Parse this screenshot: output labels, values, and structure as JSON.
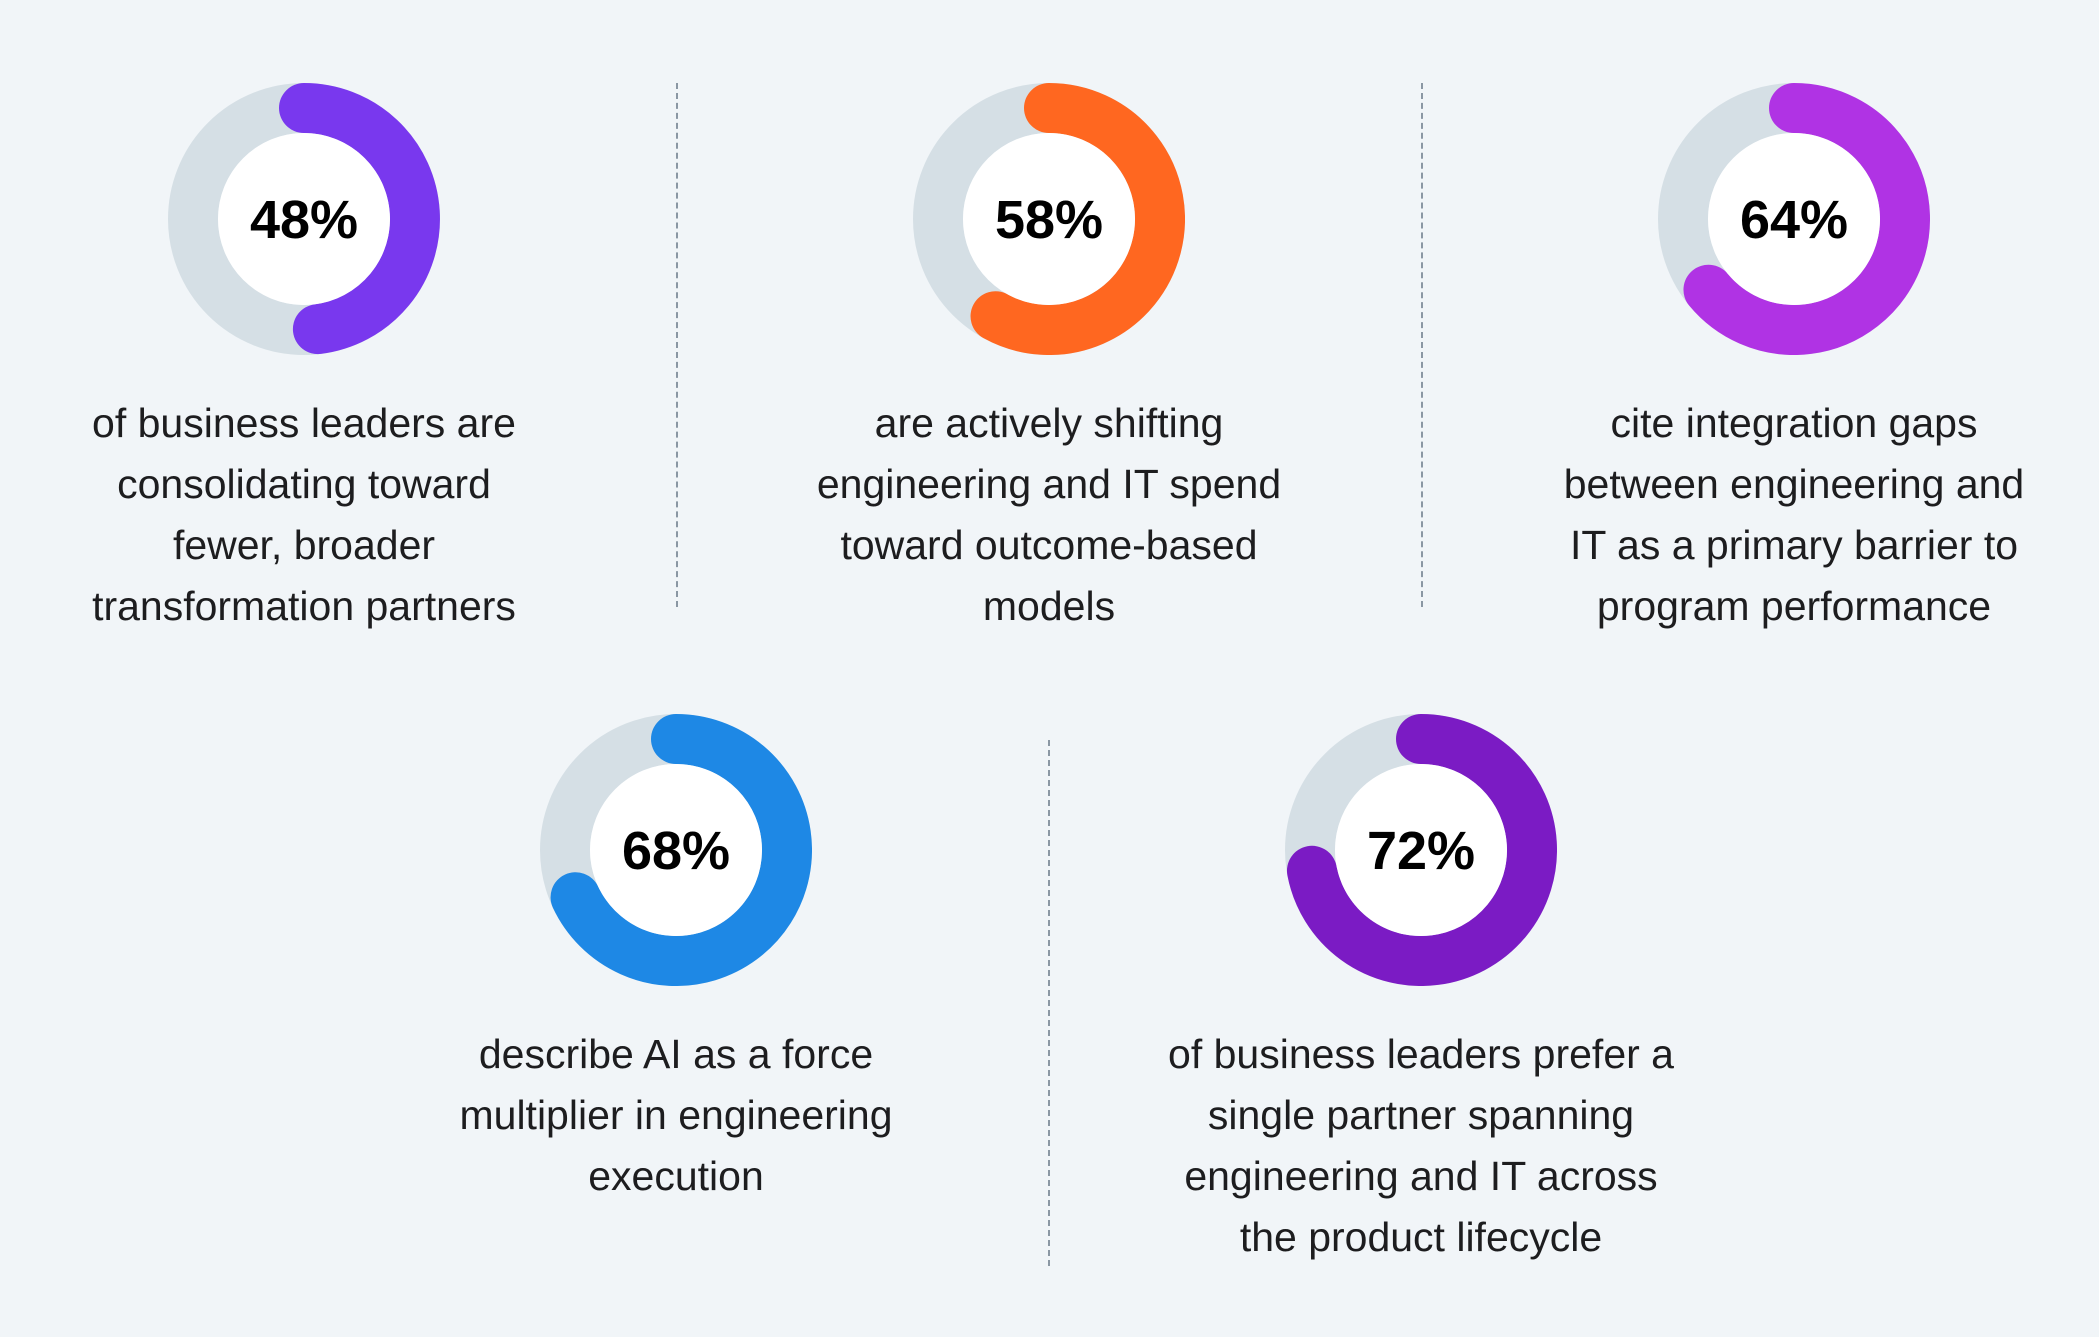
{
  "colors": {
    "background": "#f1f5f8",
    "track": "#d5dfe5",
    "center": "#ffffff",
    "divider": "#8a97a3",
    "text": "#1d1d1f"
  },
  "chart_data": [
    {
      "type": "donut",
      "value": 48,
      "label": "48%",
      "color": "#7938ee",
      "caption_lines": [
        "of business leaders are",
        "consolidating toward",
        "fewer, broader",
        "transformation partners"
      ]
    },
    {
      "type": "donut",
      "value": 58,
      "label": "58%",
      "color": "#ff6720",
      "caption_lines": [
        "are actively shifting",
        "engineering and IT spend",
        "toward outcome-based",
        "models"
      ]
    },
    {
      "type": "donut",
      "value": 64,
      "label": "64%",
      "color": "#b033e4",
      "caption_lines": [
        "cite integration gaps",
        "between engineering and",
        "IT as a primary barrier to",
        "program performance"
      ]
    },
    {
      "type": "donut",
      "value": 68,
      "label": "68%",
      "color": "#1e88e5",
      "caption_lines": [
        "describe AI as a force",
        "multiplier in engineering",
        "execution"
      ]
    },
    {
      "type": "donut",
      "value": 72,
      "label": "72%",
      "color": "#7b1bc4",
      "caption_lines": [
        "of business leaders prefer a",
        "single partner spanning",
        "engineering and IT across",
        "the product lifecycle"
      ]
    }
  ]
}
